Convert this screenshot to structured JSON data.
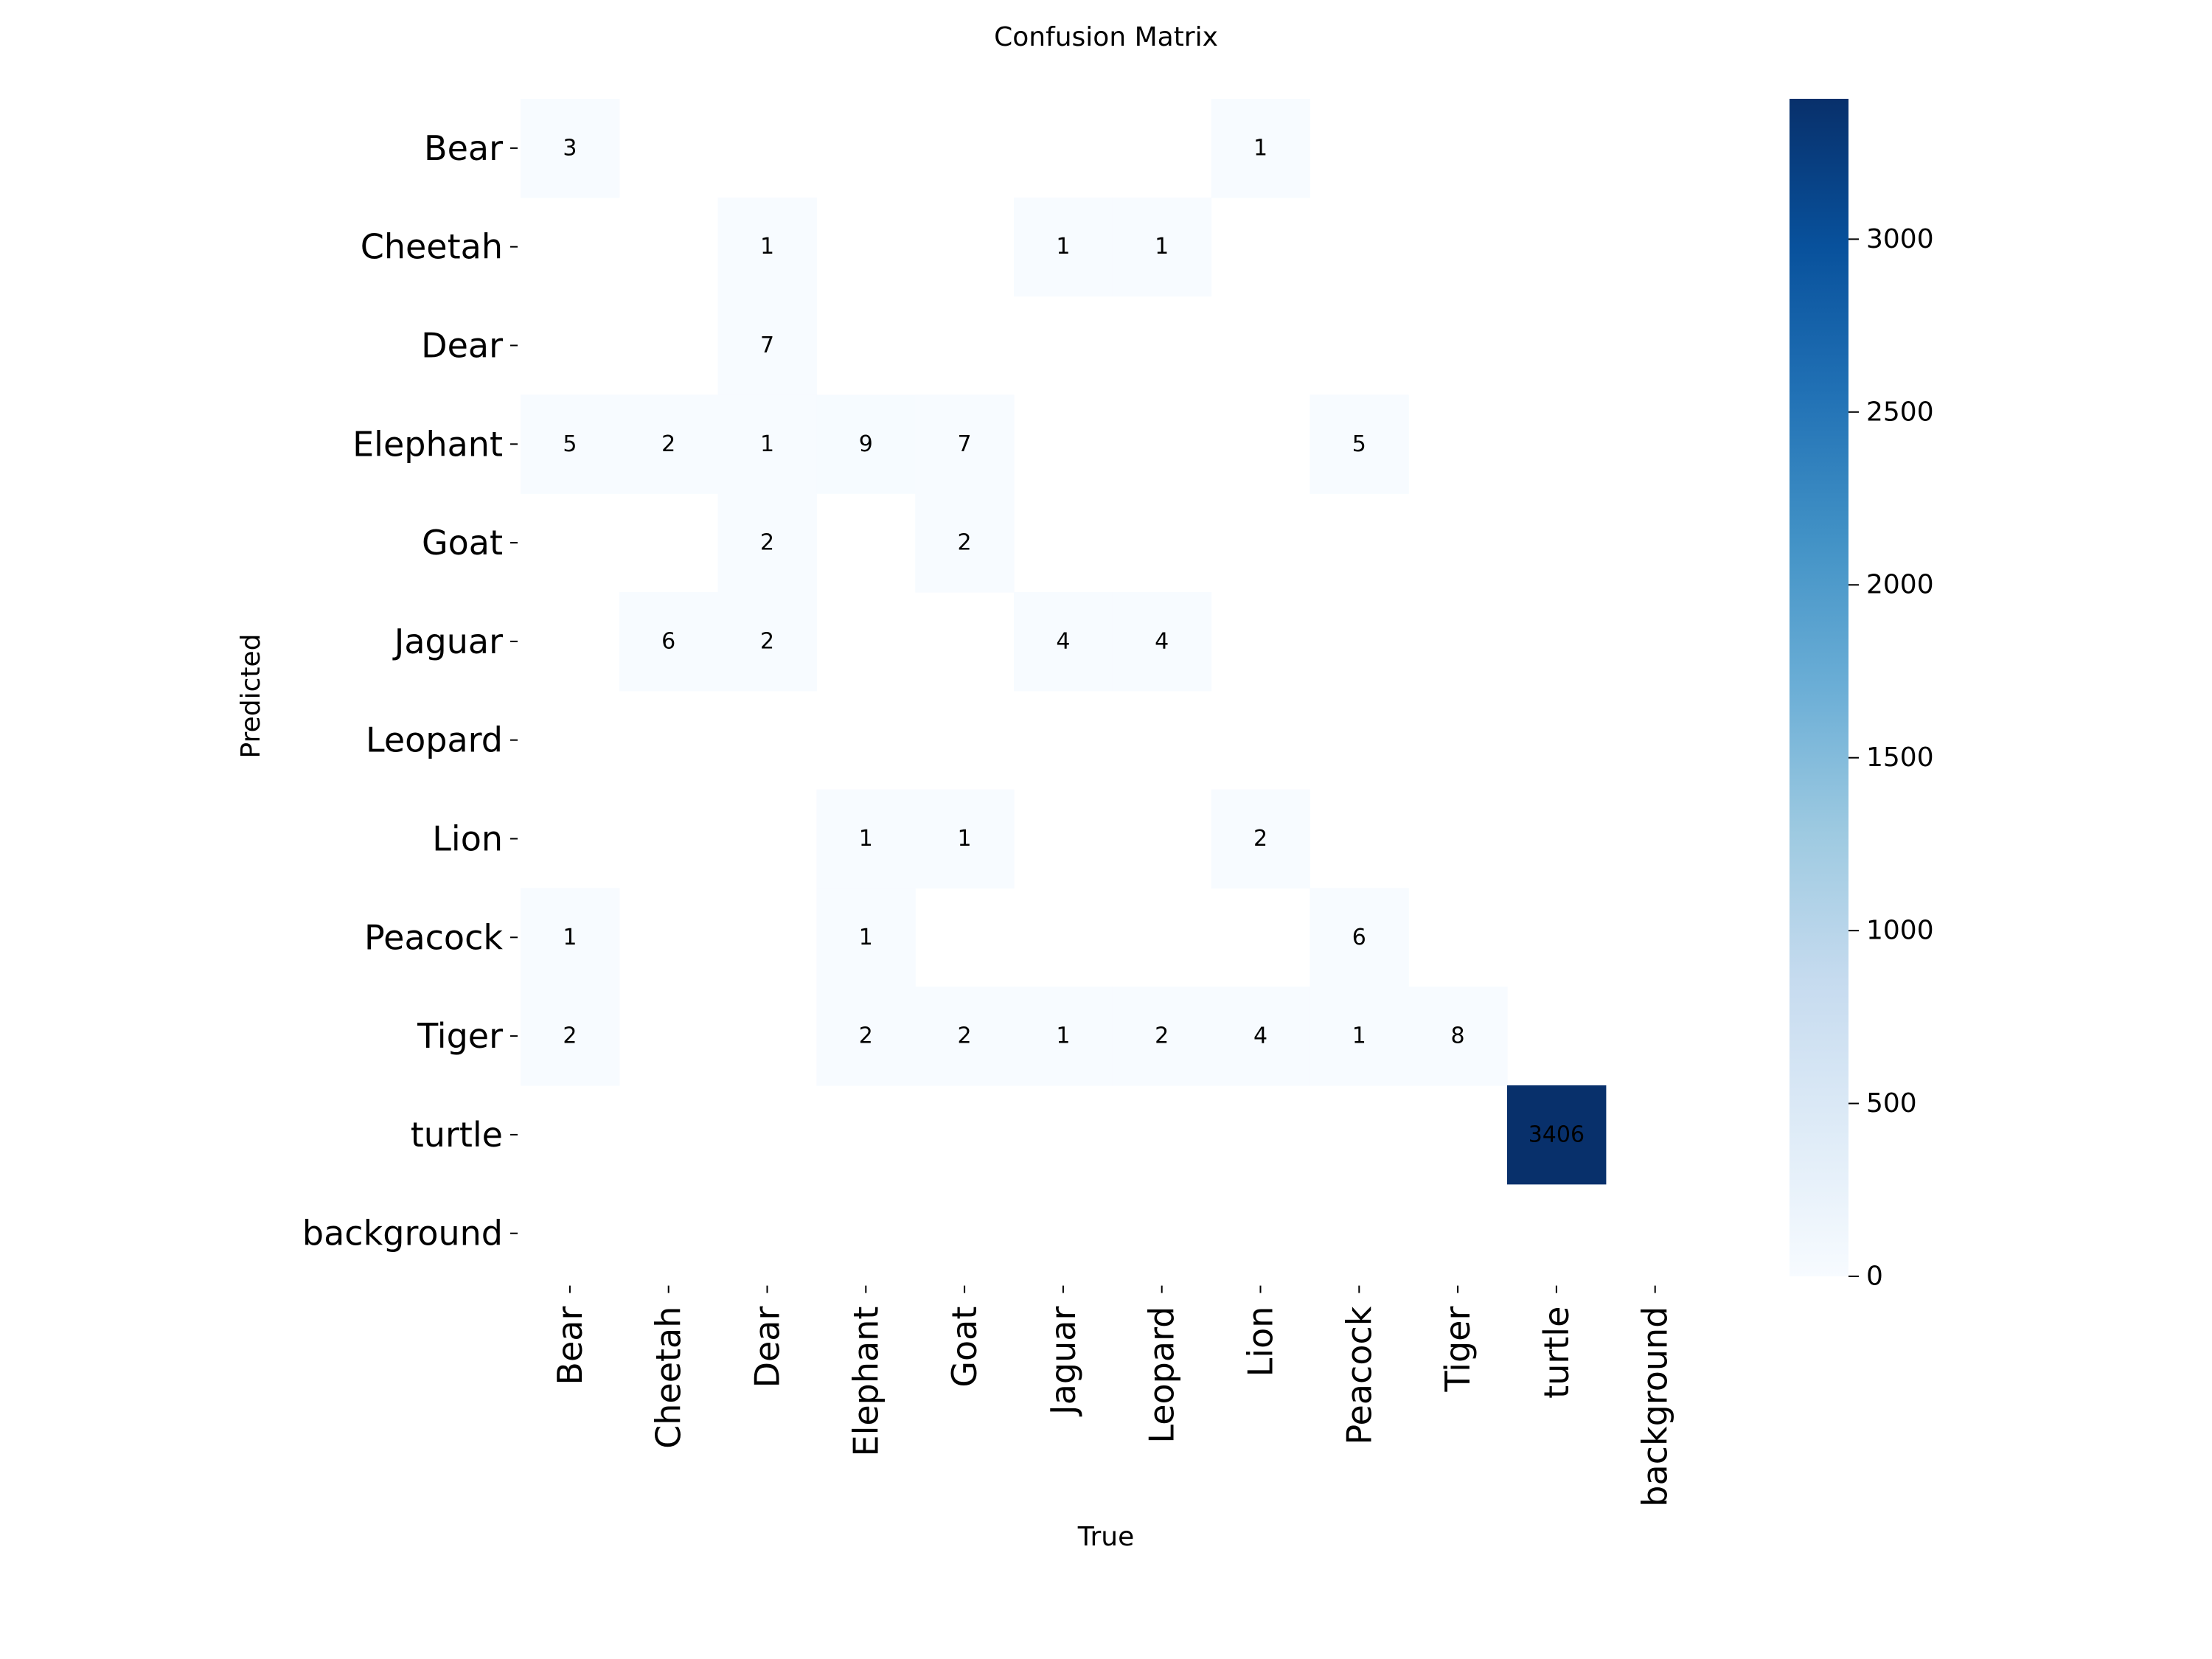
{
  "chart_data": {
    "type": "heatmap",
    "title": "Confusion Matrix",
    "xlabel": "True",
    "ylabel": "Predicted",
    "x_categories": [
      "Bear",
      "Cheetah",
      "Dear",
      "Elephant",
      "Goat",
      "Jaguar",
      "Leopard",
      "Lion",
      "Peacock",
      "Tiger",
      "turtle",
      "background"
    ],
    "y_categories": [
      "Bear",
      "Cheetah",
      "Dear",
      "Elephant",
      "Goat",
      "Jaguar",
      "Leopard",
      "Lion",
      "Peacock",
      "Tiger",
      "turtle",
      "background"
    ],
    "values": [
      [
        3,
        0,
        0,
        0,
        0,
        0,
        0,
        1,
        0,
        0,
        0,
        0
      ],
      [
        0,
        0,
        1,
        0,
        0,
        1,
        1,
        0,
        0,
        0,
        0,
        0
      ],
      [
        0,
        0,
        7,
        0,
        0,
        0,
        0,
        0,
        0,
        0,
        0,
        0
      ],
      [
        5,
        2,
        1,
        9,
        7,
        0,
        0,
        0,
        5,
        0,
        0,
        0
      ],
      [
        0,
        0,
        2,
        0,
        2,
        0,
        0,
        0,
        0,
        0,
        0,
        0
      ],
      [
        0,
        6,
        2,
        0,
        0,
        4,
        4,
        0,
        0,
        0,
        0,
        0
      ],
      [
        0,
        0,
        0,
        0,
        0,
        0,
        0,
        0,
        0,
        0,
        0,
        0
      ],
      [
        0,
        0,
        0,
        1,
        1,
        0,
        0,
        2,
        0,
        0,
        0,
        0
      ],
      [
        1,
        0,
        0,
        1,
        0,
        0,
        0,
        0,
        6,
        0,
        0,
        0
      ],
      [
        2,
        0,
        0,
        2,
        2,
        1,
        2,
        4,
        1,
        8,
        0,
        0
      ],
      [
        0,
        0,
        0,
        0,
        0,
        0,
        0,
        0,
        0,
        0,
        3406,
        0
      ],
      [
        0,
        0,
        0,
        0,
        0,
        0,
        0,
        0,
        0,
        0,
        0,
        0
      ]
    ],
    "colorbar": {
      "min": 0,
      "max": 3406,
      "ticks": [
        0,
        500,
        1000,
        1500,
        2000,
        2500,
        3000
      ],
      "colormap": "Blues"
    },
    "grid": false
  },
  "colors": {
    "background": "#ffffff",
    "text_dark": "#000000",
    "text_light": "#ffffff",
    "cmap_stops": [
      "#f7fbff",
      "#deebf7",
      "#c6dbef",
      "#9ecae1",
      "#6baed6",
      "#4292c6",
      "#2171b5",
      "#08519c",
      "#08306b"
    ]
  }
}
